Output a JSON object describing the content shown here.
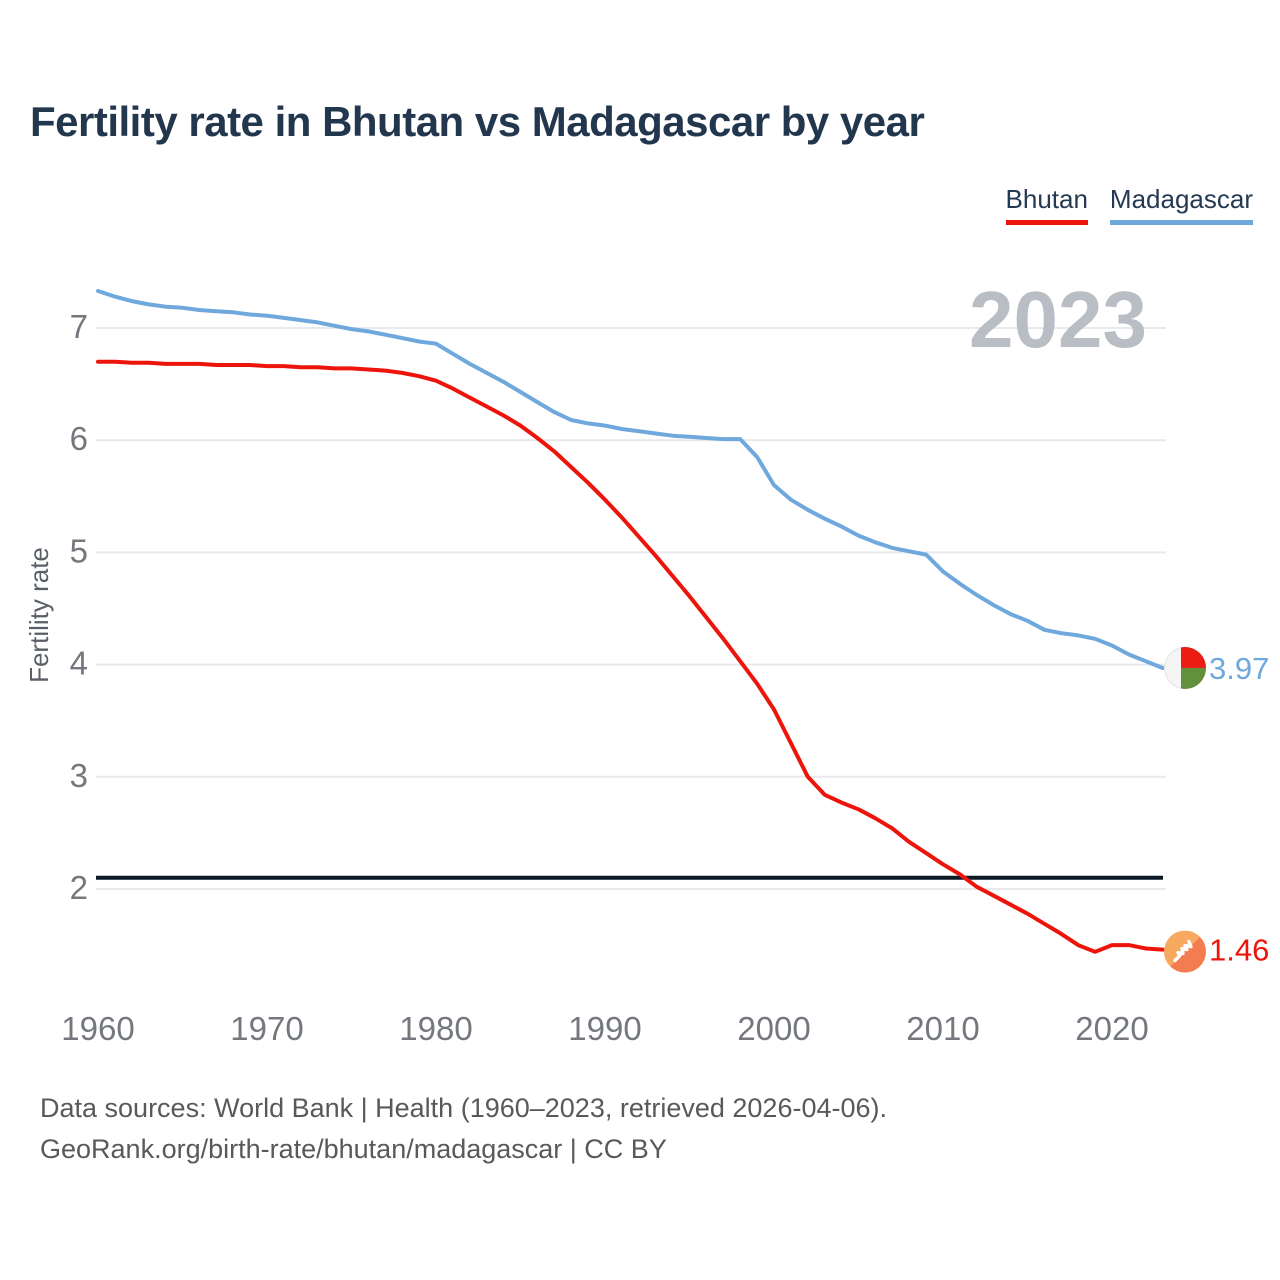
{
  "title": "Fertility rate in Bhutan vs Madagascar by year",
  "legend": {
    "items": [
      {
        "label": "Bhutan",
        "color": "#ed150b"
      },
      {
        "label": "Madagascar",
        "color": "#6fa8dc"
      }
    ]
  },
  "footer": {
    "line1": "Data sources: World Bank | Health (1960–2023, retrieved 2026-04-06).",
    "line2": "GeoRank.org/birth-rate/bhutan/madagascar | CC BY"
  },
  "chart_data": {
    "type": "line",
    "title": "Fertility rate in Bhutan vs Madagascar by year",
    "xlabel": "",
    "ylabel": "Fertility rate",
    "watermark": "2023",
    "grid": true,
    "legend_position": "top-right",
    "x_ticks": [
      1960,
      1970,
      1980,
      1990,
      2000,
      2010,
      2020
    ],
    "y_ticks": [
      7,
      6,
      5,
      4,
      3,
      2
    ],
    "xlim": [
      1960,
      2023
    ],
    "ylim": [
      1.2,
      7.6
    ],
    "reference_line": {
      "value": 2.1,
      "color": "#0c1a28"
    },
    "x": [
      1960,
      1961,
      1962,
      1963,
      1964,
      1965,
      1966,
      1967,
      1968,
      1969,
      1970,
      1971,
      1972,
      1973,
      1974,
      1975,
      1976,
      1977,
      1978,
      1979,
      1980,
      1981,
      1982,
      1983,
      1984,
      1985,
      1986,
      1987,
      1988,
      1989,
      1990,
      1991,
      1992,
      1993,
      1994,
      1995,
      1996,
      1997,
      1998,
      1999,
      2000,
      2001,
      2002,
      2003,
      2004,
      2005,
      2006,
      2007,
      2008,
      2009,
      2010,
      2011,
      2012,
      2013,
      2014,
      2015,
      2016,
      2017,
      2018,
      2019,
      2020,
      2021,
      2022,
      2023
    ],
    "series": [
      {
        "name": "Bhutan",
        "color": "#ed150b",
        "flag_icon": "bhutan-flag-icon",
        "end_value_label": "1.46",
        "values": [
          6.7,
          6.7,
          6.69,
          6.69,
          6.68,
          6.68,
          6.68,
          6.67,
          6.67,
          6.67,
          6.66,
          6.66,
          6.65,
          6.65,
          6.64,
          6.64,
          6.63,
          6.62,
          6.6,
          6.57,
          6.53,
          6.46,
          6.38,
          6.3,
          6.22,
          6.13,
          6.02,
          5.9,
          5.76,
          5.62,
          5.47,
          5.31,
          5.14,
          4.97,
          4.79,
          4.61,
          4.42,
          4.23,
          4.03,
          3.83,
          3.6,
          3.3,
          3.0,
          2.84,
          2.77,
          2.71,
          2.63,
          2.54,
          2.42,
          2.32,
          2.22,
          2.13,
          2.02,
          1.94,
          1.86,
          1.78,
          1.69,
          1.6,
          1.5,
          1.44,
          1.5,
          1.5,
          1.47,
          1.46
        ]
      },
      {
        "name": "Madagascar",
        "color": "#6fa8dc",
        "flag_icon": "madagascar-flag-icon",
        "end_value_label": "3.97",
        "values": [
          7.33,
          7.28,
          7.24,
          7.21,
          7.19,
          7.18,
          7.16,
          7.15,
          7.14,
          7.12,
          7.11,
          7.09,
          7.07,
          7.05,
          7.02,
          6.99,
          6.97,
          6.94,
          6.91,
          6.88,
          6.86,
          6.77,
          6.68,
          6.6,
          6.52,
          6.43,
          6.34,
          6.25,
          6.18,
          6.15,
          6.13,
          6.1,
          6.08,
          6.06,
          6.04,
          6.03,
          6.02,
          6.01,
          6.01,
          5.85,
          5.6,
          5.47,
          5.38,
          5.3,
          5.23,
          5.15,
          5.09,
          5.04,
          5.01,
          4.98,
          4.83,
          4.72,
          4.62,
          4.53,
          4.45,
          4.39,
          4.31,
          4.28,
          4.26,
          4.23,
          4.17,
          4.09,
          4.03,
          3.97
        ]
      }
    ]
  }
}
